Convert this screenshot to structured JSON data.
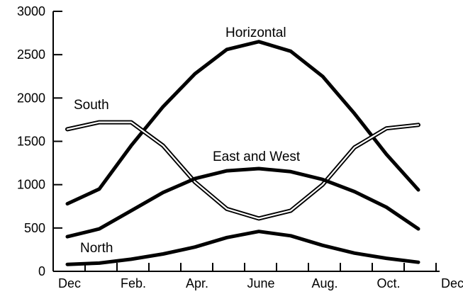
{
  "chart_data": {
    "type": "line",
    "x_tick_labels": [
      "Dec",
      "Feb.",
      "Apr.",
      "June",
      "Aug.",
      "Oct.",
      "Dec"
    ],
    "x": [
      0,
      1,
      2,
      3,
      4,
      5,
      6,
      7,
      8,
      9,
      10,
      11
    ],
    "xlim": [
      0,
      12
    ],
    "ylim": [
      0,
      3000
    ],
    "y_ticks": [
      0,
      500,
      1000,
      1500,
      2000,
      2500,
      3000
    ],
    "grid": false,
    "legend": "none",
    "series": [
      {
        "name": "Horizontal",
        "style": "solid",
        "values": [
          780,
          950,
          1450,
          1900,
          2280,
          2560,
          2650,
          2540,
          2250,
          1820,
          1350,
          940
        ]
      },
      {
        "name": "South",
        "style": "double",
        "values": [
          1640,
          1720,
          1720,
          1450,
          1030,
          720,
          610,
          700,
          1000,
          1430,
          1650,
          1690
        ]
      },
      {
        "name": "East and West",
        "style": "solid",
        "values": [
          400,
          490,
          700,
          910,
          1070,
          1160,
          1185,
          1150,
          1060,
          920,
          740,
          490
        ]
      },
      {
        "name": "North",
        "style": "solid",
        "values": [
          80,
          95,
          140,
          200,
          280,
          390,
          460,
          410,
          300,
          210,
          150,
          105
        ]
      }
    ]
  }
}
